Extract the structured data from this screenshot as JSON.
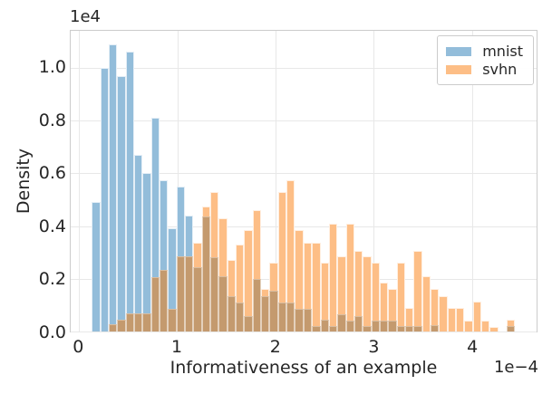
{
  "figure": {
    "ylabel": "Density",
    "xlabel": "Informativeness of an example",
    "y_offset_label": "1e4",
    "x_offset_label": "1e−4",
    "x_ticks": [
      "0",
      "1",
      "2",
      "3",
      "4"
    ],
    "y_ticks": [
      "0.0",
      "0.2",
      "0.4",
      "0.6",
      "0.8",
      "1.0"
    ],
    "legend": [
      {
        "label": "mnist",
        "color": "#93bdda"
      },
      {
        "label": "svhn",
        "color": "#fdbe86"
      }
    ]
  },
  "chart_data": {
    "type": "bar",
    "subtype": "overlapping-histogram",
    "title": "",
    "xlabel": "Informativeness of an example",
    "ylabel": "Density",
    "x_scale_note": "x values in units of 1e-4",
    "y_scale_note": "densities in units of 1e4",
    "grid": true,
    "legend_position": "upper right",
    "xlim": [
      -0.085,
      4.66
    ],
    "ylim": [
      0,
      1.14
    ],
    "x_tick_values": [
      0,
      1,
      2,
      3,
      4
    ],
    "y_tick_values": [
      0.0,
      0.2,
      0.4,
      0.6,
      0.8,
      1.0
    ],
    "bin_start": 0.131,
    "bin_width": 0.0862,
    "bin_count": 50,
    "overlap_color": "#c49a6e",
    "series": [
      {
        "name": "mnist",
        "color": "#93bdda",
        "values": [
          0.49,
          1.0,
          1.09,
          0.97,
          1.06,
          0.67,
          0.6,
          0.81,
          0.575,
          0.39,
          0.55,
          0.44,
          0.245,
          0.435,
          0.28,
          0.21,
          0.135,
          0.11,
          0.06,
          0.2,
          0.135,
          0.155,
          0.11,
          0.11,
          0.085,
          0.085,
          0.02,
          0.045,
          0.02,
          0.065,
          0.04,
          0.06,
          0.02,
          0.04,
          0.04,
          0.04,
          0.02,
          0.02,
          0.02,
          0,
          0.025,
          0,
          0,
          0,
          0,
          0,
          0,
          0,
          0,
          0.02
        ]
      },
      {
        "name": "svhn",
        "color": "#fdbe86",
        "values": [
          0,
          0,
          0.028,
          0.046,
          0.07,
          0.07,
          0.07,
          0.205,
          0.235,
          0.085,
          0.285,
          0.285,
          0.335,
          0.475,
          0.53,
          0.43,
          0.27,
          0.33,
          0.385,
          0.46,
          0.16,
          0.26,
          0.53,
          0.575,
          0.385,
          0.335,
          0.335,
          0.26,
          0.41,
          0.285,
          0.41,
          0.305,
          0.285,
          0.26,
          0.185,
          0.16,
          0.26,
          0.09,
          0.305,
          0.21,
          0.16,
          0.135,
          0.09,
          0.09,
          0.04,
          0.114,
          0.04,
          0.017,
          0,
          0.046
        ]
      }
    ]
  }
}
